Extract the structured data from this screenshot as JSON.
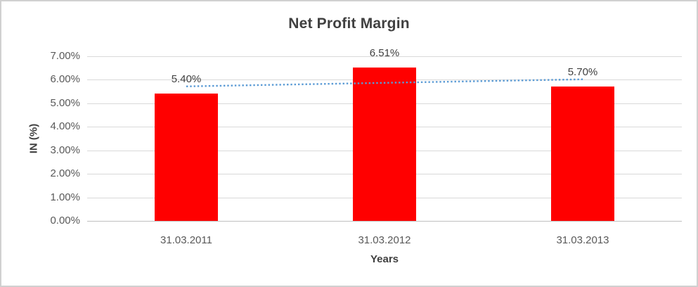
{
  "chart_data": {
    "type": "bar",
    "title": "Net Profit Margin",
    "xlabel": "Years",
    "ylabel": "IN (%)",
    "categories": [
      "31.03.2011",
      "31.03.2012",
      "31.03.2013"
    ],
    "values": [
      5.4,
      6.51,
      5.7
    ],
    "data_labels": [
      "5.40%",
      "6.51%",
      "5.70%"
    ],
    "y_ticks": [
      "0.00%",
      "1.00%",
      "2.00%",
      "3.00%",
      "4.00%",
      "5.00%",
      "6.00%",
      "7.00%"
    ],
    "ylim": [
      0,
      7
    ],
    "y_step": 1,
    "grid": true,
    "legend": "none",
    "bar_color": "#FF0000",
    "trendline": {
      "type": "linear",
      "style": "dotted",
      "color": "#5B9BD5"
    },
    "colors": {
      "title": "#404040",
      "tick_label": "#595959",
      "axis_title": "#404040",
      "gridline": "#D9D9D9",
      "baseline": "#BFBFBF",
      "border": "#D0D0D0",
      "background": "#FFFFFF"
    }
  }
}
